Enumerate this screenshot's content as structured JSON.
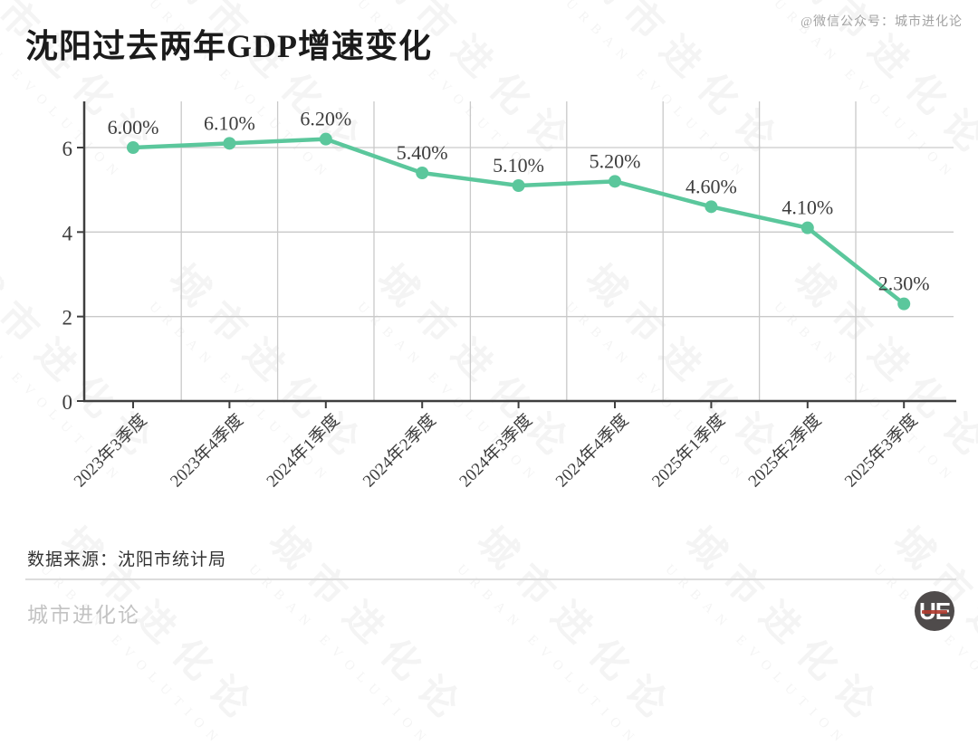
{
  "header": {
    "title": "沈阳过去两年GDP增速变化",
    "wechat_note": "@微信公众号：城市进化论"
  },
  "chart_data": {
    "type": "line",
    "title": "沈阳过去两年GDP增速变化",
    "categories": [
      "2023年3季度",
      "2023年4季度",
      "2024年1季度",
      "2024年2季度",
      "2024年3季度",
      "2024年4季度",
      "2025年1季度",
      "2025年2季度",
      "2025年3季度"
    ],
    "values": [
      6.0,
      6.1,
      6.2,
      5.4,
      5.1,
      5.2,
      4.6,
      4.1,
      2.3
    ],
    "point_labels": [
      "6.00%",
      "6.10%",
      "6.20%",
      "5.40%",
      "5.10%",
      "5.20%",
      "4.60%",
      "4.10%",
      "2.30%"
    ],
    "xlabel": "",
    "ylabel": "",
    "yticks": [
      0,
      2,
      4,
      6
    ],
    "ylim": [
      0,
      7.1
    ],
    "grid": true,
    "legend_position": "none",
    "line_color": "#5bc79c",
    "grid_color": "#c9c9c9",
    "axis_color": "#3f3f3f",
    "label_color": "#3d3d3d"
  },
  "footer": {
    "source": "数据来源：沈阳市统计局",
    "brand": "城市进化论",
    "logo_text": "UE"
  },
  "watermark": {
    "cn": "城市进化论",
    "en": "URBAN EVOLUTION"
  }
}
